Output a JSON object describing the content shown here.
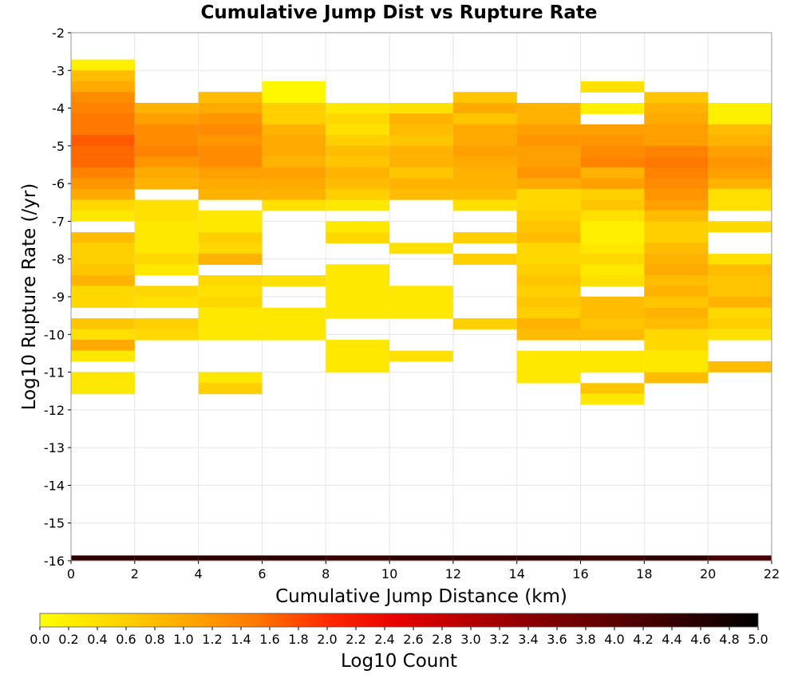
{
  "chart_data": {
    "type": "heatmap",
    "title": "Cumulative Jump Dist vs Rupture Rate",
    "xlabel": "Cumulative Jump Distance (km)",
    "ylabel": "Log10 Rupture Rate (/yr)",
    "xlim": [
      0,
      22
    ],
    "ylim": [
      -16,
      -2
    ],
    "x_ticks": [
      "0",
      "2",
      "4",
      "6",
      "8",
      "10",
      "12",
      "14",
      "16",
      "18",
      "20",
      "22"
    ],
    "y_ticks": [
      "-2",
      "-3",
      "-4",
      "-5",
      "-6",
      "-7",
      "-8",
      "-9",
      "-10",
      "-11",
      "-12",
      "-13",
      "-14",
      "-15",
      "-16"
    ],
    "x_bin_width": 2,
    "y_bin_height": 0.2857,
    "grid": true,
    "colorbar": {
      "label": "Log10 Count",
      "range": [
        0,
        5
      ],
      "ticks": [
        "0.0",
        "0.2",
        "0.4",
        "0.6",
        "0.8",
        "1.0",
        "1.2",
        "1.4",
        "1.6",
        "1.8",
        "2.0",
        "2.2",
        "2.4",
        "2.6",
        "2.8",
        "3.0",
        "3.2",
        "3.4",
        "3.6",
        "3.8",
        "4.0",
        "4.2",
        "4.4",
        "4.6",
        "4.8",
        "5.0"
      ],
      "colormap": "heat (yellow - orange - red - black)"
    },
    "note": "cells: [x_bin_start_km, log10_rate_bin_top, log10_count]",
    "cells": [
      [
        0,
        -2.71,
        0.2
      ],
      [
        0,
        -3.0,
        0.8
      ],
      [
        0,
        -3.29,
        1.0
      ],
      [
        0,
        -3.57,
        1.3
      ],
      [
        0,
        -3.86,
        1.4
      ],
      [
        0,
        -4.14,
        1.5
      ],
      [
        0,
        -4.43,
        1.5
      ],
      [
        0,
        -4.71,
        1.7
      ],
      [
        0,
        -5.0,
        1.6
      ],
      [
        0,
        -5.29,
        1.6
      ],
      [
        0,
        -5.57,
        1.4
      ],
      [
        0,
        -5.86,
        1.2
      ],
      [
        0,
        -6.14,
        1.0
      ],
      [
        0,
        -6.43,
        0.5
      ],
      [
        0,
        -6.71,
        0.3
      ],
      [
        0,
        -7.29,
        0.8
      ],
      [
        0,
        -7.57,
        0.6
      ],
      [
        0,
        -7.86,
        0.6
      ],
      [
        0,
        -8.14,
        0.7
      ],
      [
        0,
        -8.43,
        0.9
      ],
      [
        0,
        -8.71,
        0.5
      ],
      [
        0,
        -9.0,
        0.5
      ],
      [
        0,
        -9.57,
        0.7
      ],
      [
        0,
        -9.86,
        0.4
      ],
      [
        0,
        -10.14,
        1.0
      ],
      [
        0,
        -10.43,
        0.3
      ],
      [
        0,
        -11.0,
        0.3
      ],
      [
        0,
        -11.29,
        0.3
      ],
      [
        2,
        -3.86,
        0.9
      ],
      [
        2,
        -4.14,
        1.1
      ],
      [
        2,
        -4.43,
        1.3
      ],
      [
        2,
        -4.71,
        1.3
      ],
      [
        2,
        -5.0,
        1.4
      ],
      [
        2,
        -5.29,
        1.2
      ],
      [
        2,
        -5.57,
        1.0
      ],
      [
        2,
        -5.86,
        0.9
      ],
      [
        2,
        -6.43,
        0.4
      ],
      [
        2,
        -6.71,
        0.4
      ],
      [
        2,
        -7.0,
        0.3
      ],
      [
        2,
        -7.29,
        0.3
      ],
      [
        2,
        -7.57,
        0.3
      ],
      [
        2,
        -7.86,
        0.5
      ],
      [
        2,
        -8.14,
        0.3
      ],
      [
        2,
        -8.71,
        0.5
      ],
      [
        2,
        -9.0,
        0.4
      ],
      [
        2,
        -9.57,
        0.6
      ],
      [
        2,
        -9.86,
        0.5
      ],
      [
        4,
        -3.57,
        0.8
      ],
      [
        4,
        -3.86,
        1.0
      ],
      [
        4,
        -4.14,
        1.2
      ],
      [
        4,
        -4.43,
        1.3
      ],
      [
        4,
        -4.71,
        1.2
      ],
      [
        4,
        -5.0,
        1.3
      ],
      [
        4,
        -5.29,
        1.3
      ],
      [
        4,
        -5.57,
        1.1
      ],
      [
        4,
        -5.86,
        1.0
      ],
      [
        4,
        -6.14,
        0.9
      ],
      [
        4,
        -6.71,
        0.3
      ],
      [
        4,
        -7.0,
        0.3
      ],
      [
        4,
        -7.29,
        0.6
      ],
      [
        4,
        -7.57,
        0.5
      ],
      [
        4,
        -7.86,
        0.9
      ],
      [
        4,
        -8.43,
        0.5
      ],
      [
        4,
        -8.71,
        0.4
      ],
      [
        4,
        -9.0,
        0.5
      ],
      [
        4,
        -9.29,
        0.3
      ],
      [
        4,
        -9.57,
        0.3
      ],
      [
        4,
        -9.86,
        0.3
      ],
      [
        4,
        -11.0,
        0.3
      ],
      [
        4,
        -11.29,
        0.6
      ],
      [
        6,
        -3.29,
        0.1
      ],
      [
        6,
        -3.57,
        0.1
      ],
      [
        6,
        -3.86,
        0.6
      ],
      [
        6,
        -4.14,
        0.6
      ],
      [
        6,
        -4.43,
        0.9
      ],
      [
        6,
        -4.71,
        1.0
      ],
      [
        6,
        -5.0,
        1.0
      ],
      [
        6,
        -5.29,
        0.9
      ],
      [
        6,
        -5.57,
        1.1
      ],
      [
        6,
        -5.86,
        1.0
      ],
      [
        6,
        -6.14,
        0.9
      ],
      [
        6,
        -6.43,
        0.4
      ],
      [
        6,
        -8.43,
        0.4
      ],
      [
        6,
        -9.29,
        0.3
      ],
      [
        6,
        -9.57,
        0.3
      ],
      [
        6,
        -9.86,
        0.3
      ],
      [
        8,
        -3.86,
        0.3
      ],
      [
        8,
        -4.14,
        0.5
      ],
      [
        8,
        -4.43,
        0.4
      ],
      [
        8,
        -4.71,
        0.6
      ],
      [
        8,
        -5.0,
        0.8
      ],
      [
        8,
        -5.29,
        0.7
      ],
      [
        8,
        -5.57,
        0.9
      ],
      [
        8,
        -5.86,
        0.8
      ],
      [
        8,
        -6.14,
        0.6
      ],
      [
        8,
        -6.43,
        0.3
      ],
      [
        8,
        -7.0,
        0.3
      ],
      [
        8,
        -7.29,
        0.5
      ],
      [
        8,
        -8.14,
        0.3
      ],
      [
        8,
        -8.43,
        0.3
      ],
      [
        8,
        -8.71,
        0.3
      ],
      [
        8,
        -9.0,
        0.3
      ],
      [
        8,
        -9.29,
        0.3
      ],
      [
        8,
        -10.14,
        0.3
      ],
      [
        8,
        -10.43,
        0.3
      ],
      [
        8,
        -10.71,
        0.3
      ],
      [
        10,
        -3.86,
        0.4
      ],
      [
        10,
        -4.14,
        0.9
      ],
      [
        10,
        -4.43,
        0.8
      ],
      [
        10,
        -4.71,
        0.7
      ],
      [
        10,
        -5.0,
        0.9
      ],
      [
        10,
        -5.29,
        0.9
      ],
      [
        10,
        -5.57,
        0.7
      ],
      [
        10,
        -5.86,
        0.9
      ],
      [
        10,
        -6.14,
        0.8
      ],
      [
        10,
        -7.57,
        0.4
      ],
      [
        10,
        -8.71,
        0.3
      ],
      [
        10,
        -9.0,
        0.3
      ],
      [
        10,
        -9.29,
        0.3
      ],
      [
        10,
        -10.43,
        0.4
      ],
      [
        12,
        -3.57,
        0.7
      ],
      [
        12,
        -3.86,
        1.0
      ],
      [
        12,
        -4.14,
        0.7
      ],
      [
        12,
        -4.43,
        1.0
      ],
      [
        12,
        -4.71,
        1.0
      ],
      [
        12,
        -5.0,
        1.1
      ],
      [
        12,
        -5.29,
        1.0
      ],
      [
        12,
        -5.57,
        0.9
      ],
      [
        12,
        -5.86,
        0.9
      ],
      [
        12,
        -6.14,
        0.8
      ],
      [
        12,
        -6.43,
        0.4
      ],
      [
        12,
        -7.29,
        0.6
      ],
      [
        12,
        -7.86,
        0.6
      ],
      [
        12,
        -9.57,
        0.6
      ],
      [
        14,
        -3.86,
        0.9
      ],
      [
        14,
        -4.14,
        0.9
      ],
      [
        14,
        -4.43,
        1.1
      ],
      [
        14,
        -4.71,
        1.2
      ],
      [
        14,
        -5.0,
        1.1
      ],
      [
        14,
        -5.29,
        1.1
      ],
      [
        14,
        -5.57,
        1.2
      ],
      [
        14,
        -5.86,
        1.0
      ],
      [
        14,
        -6.14,
        0.5
      ],
      [
        14,
        -6.43,
        0.5
      ],
      [
        14,
        -6.71,
        0.6
      ],
      [
        14,
        -7.0,
        0.7
      ],
      [
        14,
        -7.29,
        0.8
      ],
      [
        14,
        -7.57,
        0.5
      ],
      [
        14,
        -7.86,
        0.5
      ],
      [
        14,
        -8.14,
        0.6
      ],
      [
        14,
        -8.43,
        0.7
      ],
      [
        14,
        -8.71,
        0.6
      ],
      [
        14,
        -9.0,
        0.7
      ],
      [
        14,
        -9.29,
        0.6
      ],
      [
        14,
        -9.57,
        0.9
      ],
      [
        14,
        -9.86,
        0.8
      ],
      [
        14,
        -10.43,
        0.3
      ],
      [
        14,
        -10.71,
        0.3
      ],
      [
        14,
        -11.0,
        0.3
      ],
      [
        16,
        -3.29,
        0.4
      ],
      [
        16,
        -3.86,
        0.2
      ],
      [
        16,
        -4.43,
        1.1
      ],
      [
        16,
        -4.71,
        1.2
      ],
      [
        16,
        -5.0,
        1.3
      ],
      [
        16,
        -5.29,
        1.4
      ],
      [
        16,
        -5.57,
        0.9
      ],
      [
        16,
        -5.86,
        1.1
      ],
      [
        16,
        -6.14,
        0.6
      ],
      [
        16,
        -6.43,
        0.7
      ],
      [
        16,
        -6.71,
        0.4
      ],
      [
        16,
        -7.0,
        0.2
      ],
      [
        16,
        -7.29,
        0.2
      ],
      [
        16,
        -7.57,
        0.3
      ],
      [
        16,
        -7.86,
        0.5
      ],
      [
        16,
        -8.14,
        0.3
      ],
      [
        16,
        -8.43,
        0.4
      ],
      [
        16,
        -9.0,
        0.8
      ],
      [
        16,
        -9.29,
        0.8
      ],
      [
        16,
        -9.57,
        0.7
      ],
      [
        16,
        -9.86,
        0.8
      ],
      [
        16,
        -10.43,
        0.3
      ],
      [
        16,
        -10.71,
        0.3
      ],
      [
        16,
        -11.29,
        0.7
      ],
      [
        16,
        -11.57,
        0.3
      ],
      [
        18,
        -3.57,
        0.7
      ],
      [
        18,
        -3.86,
        0.9
      ],
      [
        18,
        -4.14,
        1.0
      ],
      [
        18,
        -4.43,
        1.1
      ],
      [
        18,
        -4.71,
        1.1
      ],
      [
        18,
        -5.0,
        1.4
      ],
      [
        18,
        -5.29,
        1.5
      ],
      [
        18,
        -5.57,
        1.4
      ],
      [
        18,
        -5.86,
        1.3
      ],
      [
        18,
        -6.14,
        1.2
      ],
      [
        18,
        -6.43,
        1.1
      ],
      [
        18,
        -6.71,
        0.8
      ],
      [
        18,
        -7.0,
        0.6
      ],
      [
        18,
        -7.29,
        0.6
      ],
      [
        18,
        -7.57,
        0.8
      ],
      [
        18,
        -7.86,
        0.9
      ],
      [
        18,
        -8.14,
        1.0
      ],
      [
        18,
        -8.43,
        0.8
      ],
      [
        18,
        -8.71,
        0.9
      ],
      [
        18,
        -9.0,
        0.7
      ],
      [
        18,
        -9.29,
        0.9
      ],
      [
        18,
        -9.57,
        0.8
      ],
      [
        18,
        -9.86,
        0.5
      ],
      [
        18,
        -10.14,
        0.5
      ],
      [
        18,
        -10.43,
        0.3
      ],
      [
        18,
        -10.71,
        0.3
      ],
      [
        18,
        -11.0,
        0.8
      ],
      [
        20,
        -3.86,
        0.2
      ],
      [
        20,
        -4.14,
        0.2
      ],
      [
        20,
        -4.43,
        0.8
      ],
      [
        20,
        -4.71,
        0.9
      ],
      [
        20,
        -5.0,
        1.1
      ],
      [
        20,
        -5.29,
        1.2
      ],
      [
        20,
        -5.57,
        1.1
      ],
      [
        20,
        -5.86,
        0.9
      ],
      [
        20,
        -6.14,
        0.4
      ],
      [
        20,
        -6.43,
        0.4
      ],
      [
        20,
        -7.0,
        0.5
      ],
      [
        20,
        -7.86,
        0.4
      ],
      [
        20,
        -8.14,
        0.8
      ],
      [
        20,
        -8.43,
        0.7
      ],
      [
        20,
        -8.71,
        0.7
      ],
      [
        20,
        -9.0,
        0.9
      ],
      [
        20,
        -9.29,
        0.5
      ],
      [
        20,
        -9.57,
        0.6
      ],
      [
        20,
        -9.86,
        0.4
      ],
      [
        20,
        -10.71,
        0.8
      ]
    ],
    "bottom_row": {
      "y": -15.86,
      "values": [
        4.5,
        4.5,
        4.5,
        4.5,
        4.4,
        4.5,
        4.5,
        4.5,
        4.4,
        4.5,
        4.2
      ]
    }
  }
}
